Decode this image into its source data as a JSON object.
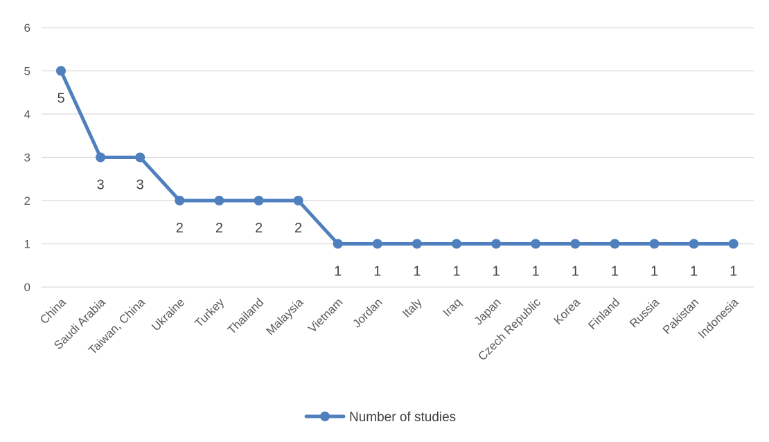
{
  "chart_data": {
    "type": "line",
    "categories": [
      "China",
      "Saudi Arabia",
      "Taiwan, China",
      "Ukraine",
      "Turkey",
      "Thailand",
      "Malaysia",
      "Vietnam",
      "Jordan",
      "Italy",
      "Iraq",
      "Japan",
      "Czech Republic",
      "Korea",
      "Finland",
      "Russia",
      "Pakistan",
      "Indonesia"
    ],
    "series": [
      {
        "name": "Number of studies",
        "values": [
          5,
          3,
          3,
          2,
          2,
          2,
          2,
          1,
          1,
          1,
          1,
          1,
          1,
          1,
          1,
          1,
          1,
          1
        ]
      }
    ],
    "ylim": [
      0,
      6
    ],
    "yticks": [
      0,
      1,
      2,
      3,
      4,
      5,
      6
    ],
    "grid": true,
    "data_labels": "below",
    "legend": "bottom",
    "colors": {
      "series": "#4f7fbd",
      "grid": "#d9d9d9",
      "tick_text": "#595959",
      "label_text": "#404040"
    }
  }
}
